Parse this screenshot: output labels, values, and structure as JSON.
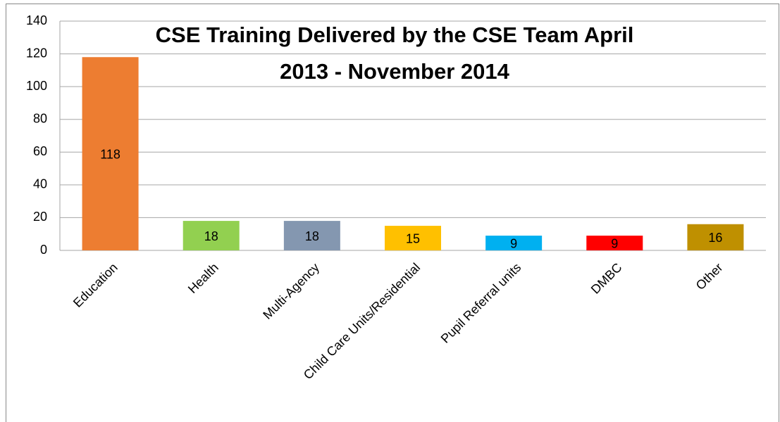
{
  "chart_data": {
    "type": "bar",
    "title": [
      "CSE Training Delivered by the CSE Team April",
      "2013 - November 2014"
    ],
    "categories": [
      "Education",
      "Health",
      "Multi-Agency",
      "Child Care Units/Residential",
      "Pupil Referral units",
      "DMBC",
      "Other"
    ],
    "values": [
      118,
      18,
      18,
      15,
      9,
      9,
      16
    ],
    "colors": [
      "#ed7d31",
      "#92d050",
      "#8497b0",
      "#ffc000",
      "#00b0f0",
      "#ff0000",
      "#bf9000"
    ],
    "ylim": [
      0,
      140
    ],
    "yticks": [
      0,
      20,
      40,
      60,
      80,
      100,
      120,
      140
    ],
    "grid": true
  }
}
